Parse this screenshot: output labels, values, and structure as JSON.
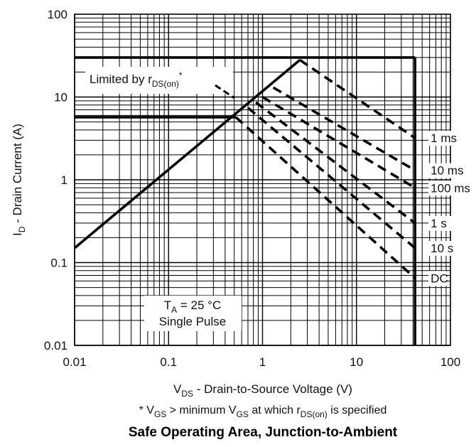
{
  "chart_data": {
    "type": "line",
    "title": "Safe Operating Area, Junction-to-Ambient",
    "x_scale": "log",
    "y_scale": "log",
    "xlim": [
      0.01,
      100
    ],
    "ylim": [
      0.01,
      100
    ],
    "grid": true,
    "x_label": {
      "main": "V",
      "sub": "DS",
      "rest": " - Drain-to-Source Voltage (V)"
    },
    "y_label": {
      "main": "I",
      "sub": "D",
      "rest": " - Drain Current (A)"
    },
    "x_ticks": [
      {
        "value": 0.01,
        "label": "0.01"
      },
      {
        "value": 0.1,
        "label": "0.1"
      },
      {
        "value": 1,
        "label": "1"
      },
      {
        "value": 10,
        "label": "10"
      },
      {
        "value": 100,
        "label": "100"
      }
    ],
    "y_ticks": [
      {
        "value": 0.01,
        "label": "0.01"
      },
      {
        "value": 0.1,
        "label": "0.1"
      },
      {
        "value": 1,
        "label": "1"
      },
      {
        "value": 10,
        "label": "10"
      },
      {
        "value": 100,
        "label": "100"
      }
    ],
    "limits": [
      {
        "name": "rds_on",
        "style": "solid",
        "points": [
          [
            0.01,
            0.15
          ],
          [
            2.5,
            28
          ]
        ]
      },
      {
        "name": "current_pulse",
        "style": "solid",
        "points": [
          [
            0.01,
            30
          ],
          [
            42,
            30
          ]
        ]
      },
      {
        "name": "current_dc",
        "style": "solid",
        "points": [
          [
            0.01,
            5.7
          ],
          [
            0.52,
            5.7
          ]
        ]
      },
      {
        "name": "voltage",
        "style": "solid",
        "points": [
          [
            42,
            30
          ],
          [
            42,
            0.01
          ]
        ]
      }
    ],
    "series": [
      {
        "name": "1 ms",
        "style": "dashed",
        "points": [
          [
            2.5,
            28
          ],
          [
            42,
            3.2
          ]
        ]
      },
      {
        "name": "10 ms",
        "style": "dashed",
        "points": [
          [
            1.3,
            13
          ],
          [
            42,
            1.3
          ]
        ]
      },
      {
        "name": "100 ms",
        "style": "dashed",
        "points": [
          [
            1.0,
            10
          ],
          [
            42,
            0.8
          ]
        ]
      },
      {
        "name": "1 s",
        "style": "dashed",
        "points": [
          [
            0.85,
            8.6
          ],
          [
            42,
            0.3
          ]
        ]
      },
      {
        "name": "10 s",
        "style": "dashed",
        "points": [
          [
            0.7,
            7.4
          ],
          [
            42,
            0.15
          ]
        ]
      },
      {
        "name": "DC",
        "style": "dashed",
        "points": [
          [
            0.52,
            5.7
          ],
          [
            42,
            0.065
          ]
        ]
      }
    ],
    "annotations": {
      "rds_label": {
        "text": "Limited by r",
        "sub": "DS(on)",
        "sup": "*"
      },
      "conditions": {
        "line1_main": "T",
        "line1_sub": "A",
        "line1_rest": " = 25 °C",
        "line2": "Single Pulse"
      }
    },
    "footnote": {
      "p1": "* V",
      "s1": "GS",
      "p2": " > minimum V",
      "s2": "GS",
      "p3": " at which r",
      "s3": "DS(on)",
      "p4": " is specified"
    }
  }
}
